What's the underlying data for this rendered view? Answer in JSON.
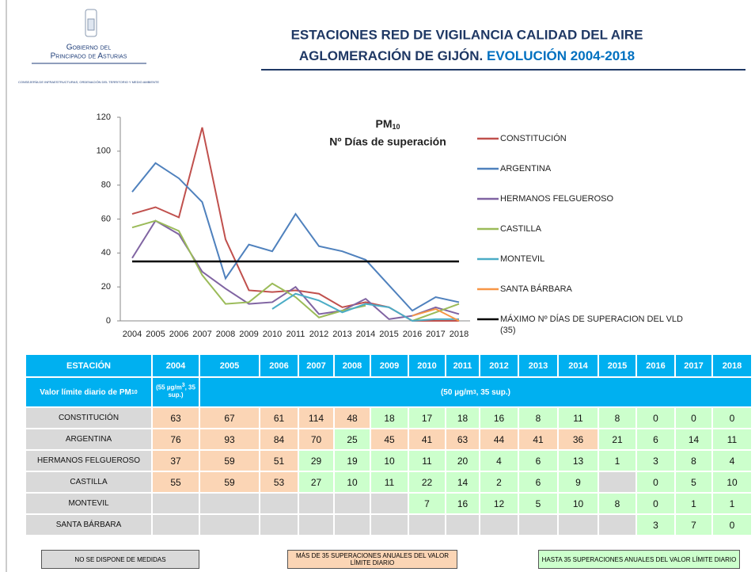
{
  "header": {
    "logo_line1": "Gobierno del",
    "logo_line2": "Principado de Asturias",
    "logo_dept": "CONSEJERÍA DE INFRAESTRUCTURAS, ORDENACIÓN DEL TERRITORIO Y MEDIO AMBIENTE",
    "title_line1": "ESTACIONES RED DE VIGILANCIA CALIDAD DEL AIRE",
    "title_line2": "AGLOMERACIÓN DE GIJÓN.",
    "title_highlight": "EVOLUCIÓN 2004-2018"
  },
  "chart_data": {
    "type": "line",
    "title": "PM",
    "title_sub": "10",
    "subtitle": "Nº Días de superación",
    "categories": [
      "2004",
      "2005",
      "2006",
      "2007",
      "2008",
      "2009",
      "2010",
      "2011",
      "2012",
      "2013",
      "2014",
      "2015",
      "2016",
      "2017",
      "2018"
    ],
    "ylim": [
      0,
      120
    ],
    "yticks": [
      0,
      20,
      40,
      60,
      80,
      100,
      120
    ],
    "legend": "right",
    "series": [
      {
        "name": "CONSTITUCIÓN",
        "color": "#c0504d",
        "values": [
          63,
          67,
          61,
          114,
          48,
          18,
          17,
          18,
          16,
          8,
          11,
          8,
          0,
          0,
          0
        ]
      },
      {
        "name": "ARGENTINA",
        "color": "#4f81bd",
        "values": [
          76,
          93,
          84,
          70,
          25,
          45,
          41,
          63,
          44,
          41,
          36,
          21,
          6,
          14,
          11
        ]
      },
      {
        "name": "HERMANOS FELGUEROSO",
        "color": "#8064a2",
        "values": [
          37,
          59,
          51,
          29,
          19,
          10,
          11,
          20,
          4,
          6,
          13,
          1,
          3,
          8,
          4
        ]
      },
      {
        "name": "CASTILLA",
        "color": "#9bbb59",
        "values": [
          55,
          59,
          53,
          27,
          10,
          11,
          22,
          14,
          2,
          6,
          9,
          null,
          0,
          5,
          10
        ]
      },
      {
        "name": "MONTEVIL",
        "color": "#4bacc6",
        "values": [
          null,
          null,
          null,
          null,
          null,
          null,
          7,
          16,
          12,
          5,
          10,
          8,
          0,
          1,
          1
        ]
      },
      {
        "name": "SANTA BÁRBARA",
        "color": "#f79646",
        "values": [
          null,
          null,
          null,
          null,
          null,
          null,
          null,
          null,
          null,
          null,
          null,
          null,
          3,
          7,
          0
        ]
      },
      {
        "name": "MÁXIMO Nº DÍAS DE SUPERACION DEL VLD (35)",
        "color": "#000000",
        "values": [
          35,
          35,
          35,
          35,
          35,
          35,
          35,
          35,
          35,
          35,
          35,
          35,
          35,
          35,
          35
        ]
      }
    ]
  },
  "table": {
    "station_header": "ESTACIÓN",
    "limit_label": "Valor límite diario de PM",
    "limit_label_sub": "10",
    "limit_2004": [
      "(55 µg/m",
      "3",
      ", 35 sup.)"
    ],
    "limit_rest": [
      "(50 µg/m",
      "3",
      ", 35 sup.)"
    ],
    "colors": {
      "header": "#00b0f0",
      "limit_row": "#b7ecfc",
      "station": "#d9d9d9",
      "none": "#d9d9d9",
      "over": "#fbd5b5",
      "under": "#ccffcc"
    }
  },
  "legend_boxes": [
    "NO SE DISPONE DE MEDIDAS",
    "MÁS DE 35 SUPERACIONES ANUALES DEL VALOR LÍMITE DIARIO",
    "HASTA 35 SUPERACIONES ANUALES DEL VALOR LÍMITE DIARIO"
  ]
}
